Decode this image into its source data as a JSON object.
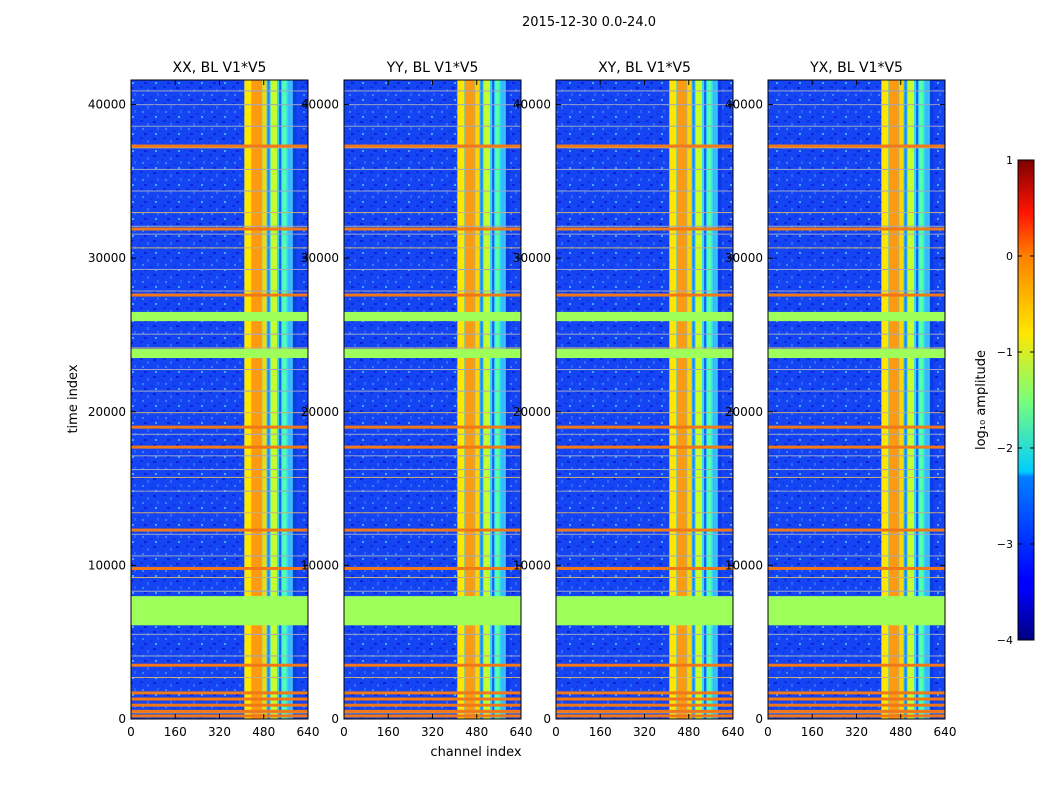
{
  "figure_title": "2015-12-30 0.0-24.0",
  "chart_data": {
    "type": "heatmap",
    "suptitle": "2015-12-30 0.0-24.0",
    "xlabel": "channel index",
    "ylabel": "time index",
    "xlim": [
      0,
      640
    ],
    "ylim": [
      0,
      41600
    ],
    "x_ticks": [
      0,
      160,
      320,
      480,
      640
    ],
    "y_ticks": [
      0,
      10000,
      20000,
      30000,
      40000
    ],
    "colormap": "jet",
    "panels": [
      {
        "title": "XX, BL V1*V5"
      },
      {
        "title": "YY, BL V1*V5"
      },
      {
        "title": "XY, BL V1*V5"
      },
      {
        "title": "YX, BL V1*V5"
      }
    ],
    "rfi_channel_band": [
      410,
      600
    ],
    "flagged_time_block": [
      6100,
      8000
    ],
    "flagged_time_blocks_secondary": [
      [
        23500,
        24100
      ],
      [
        25900,
        26500
      ]
    ],
    "strong_time_lines": [
      200,
      500,
      900,
      1300,
      1700,
      3500,
      9800,
      12300,
      17700,
      19000,
      27600,
      31900,
      37300
    ],
    "colorbar": {
      "label": "log₁₀ amplitude",
      "range": [
        -4,
        1
      ],
      "ticks": [
        -4,
        -3,
        -2,
        -1,
        0,
        1
      ],
      "tick_labels": [
        "−4",
        "−3",
        "−2",
        "−1",
        "0",
        "1"
      ]
    }
  }
}
